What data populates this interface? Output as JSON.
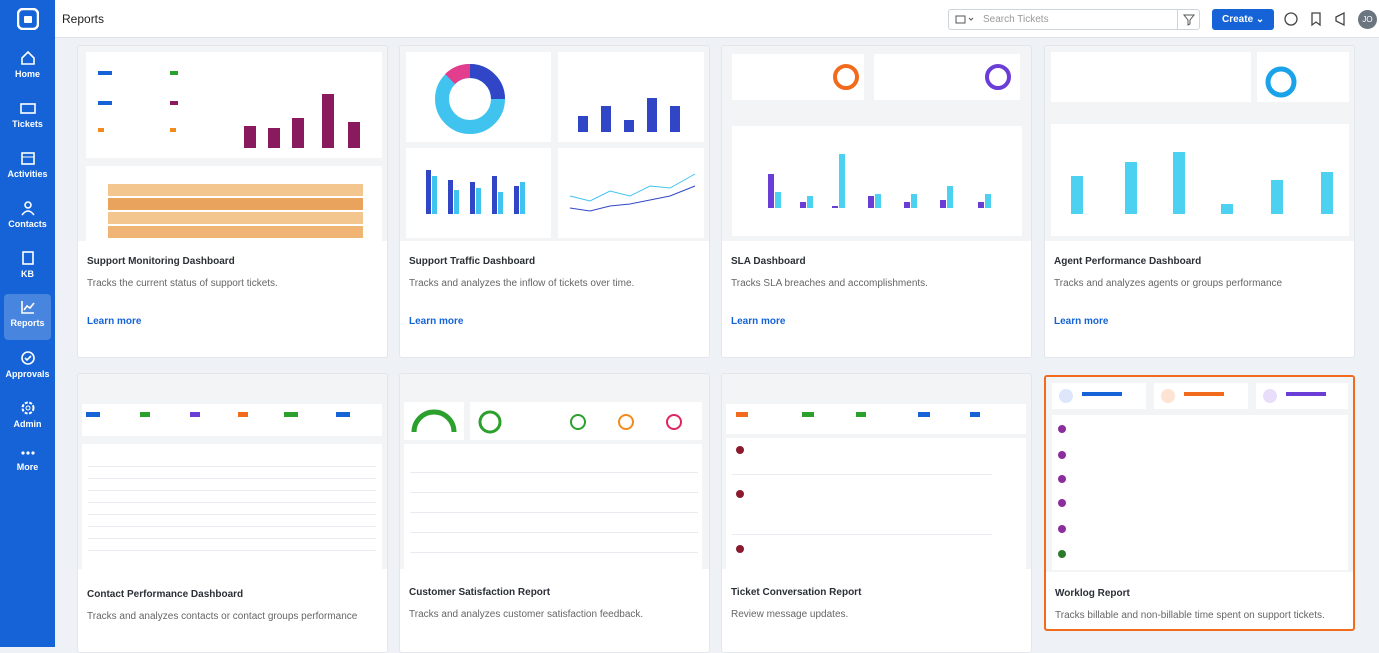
{
  "sidebar": {
    "items": [
      "Home",
      "Tickets",
      "Activities",
      "Contacts",
      "KB",
      "Reports",
      "Approvals",
      "Admin",
      "More"
    ]
  },
  "header": {
    "title": "Reports",
    "search_placeholder": "Search Tickets",
    "create_button": "Create",
    "avatar": "JO"
  },
  "cards": [
    {
      "title": "Support Monitoring Dashboard",
      "description": "Tracks the current status of support tickets.",
      "link": "Learn more"
    },
    {
      "title": "Support Traffic Dashboard",
      "description": "Tracks and analyzes the inflow of tickets over time.",
      "link": "Learn more"
    },
    {
      "title": "SLA Dashboard",
      "description": "Tracks SLA breaches and accomplishments.",
      "link": "Learn more"
    },
    {
      "title": "Agent Performance Dashboard",
      "description": "Tracks and analyzes agents or groups performance",
      "link": "Learn more"
    },
    {
      "title": "Contact Performance Dashboard",
      "description": "Tracks and analyzes contacts or contact groups performance"
    },
    {
      "title": "Customer Satisfaction Report",
      "description": "Tracks and analyzes customer satisfaction feedback."
    },
    {
      "title": "Ticket Conversation Report",
      "description": "Review message updates."
    },
    {
      "title": "Worklog Report",
      "description": "Tracks billable and non-billable time spent on support tickets."
    }
  ]
}
